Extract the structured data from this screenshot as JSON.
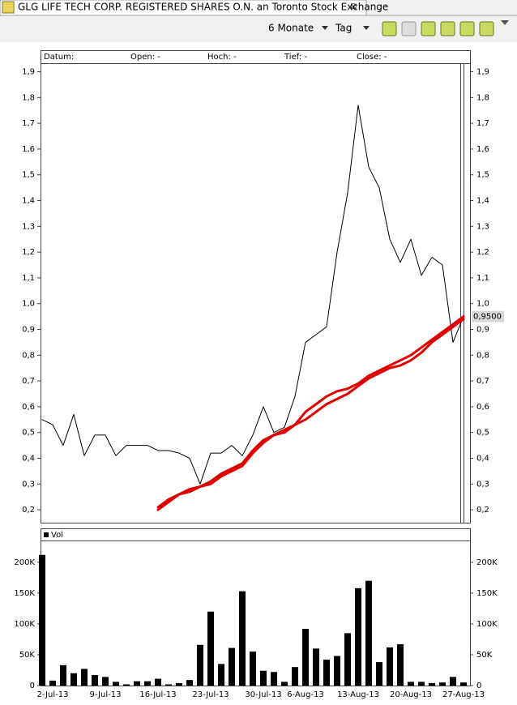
{
  "tab_title": "GLG LIFE TECH CORP. REGISTERED SHARES O.N. an Toronto Stock Exchange",
  "toolbar": {
    "period": "6 Monate",
    "interval": "Tag"
  },
  "chart_data": [
    {
      "type": "line",
      "header_fields": [
        "Datum:",
        "Open: -",
        "Hoch: -",
        "Tief: -",
        "Close: -"
      ],
      "ylim": [
        0.15,
        1.93
      ],
      "yticks": [
        {
          "value": 0.2,
          "label": "0,2"
        },
        {
          "value": 0.3,
          "label": "0,3"
        },
        {
          "value": 0.4,
          "label": "0,4"
        },
        {
          "value": 0.5,
          "label": "0,5"
        },
        {
          "value": 0.6,
          "label": "0,6"
        },
        {
          "value": 0.7,
          "label": "0,7"
        },
        {
          "value": 0.8,
          "label": "0,8"
        },
        {
          "value": 0.9,
          "label": "0,9"
        },
        {
          "value": 1.0,
          "label": "1,0"
        },
        {
          "value": 1.1,
          "label": "1,1"
        },
        {
          "value": 1.2,
          "label": "1,2"
        },
        {
          "value": 1.3,
          "label": "1,3"
        },
        {
          "value": 1.4,
          "label": "1,4"
        },
        {
          "value": 1.5,
          "label": "1,5"
        },
        {
          "value": 1.6,
          "label": "1,6"
        },
        {
          "value": 1.7,
          "label": "1,7"
        },
        {
          "value": 1.8,
          "label": "1,8"
        },
        {
          "value": 1.9,
          "label": "1,9"
        }
      ],
      "last_value": {
        "value": 0.95,
        "label": "0,9500"
      },
      "series": [
        {
          "color": "#000000",
          "width": 1,
          "values": [
            0.55,
            0.53,
            0.45,
            0.57,
            0.41,
            0.49,
            0.49,
            0.41,
            0.45,
            0.45,
            0.45,
            0.43,
            0.43,
            0.42,
            0.4,
            0.3,
            0.42,
            0.42,
            0.45,
            0.41,
            0.49,
            0.6,
            0.5,
            0.52,
            0.64,
            0.85,
            0.88,
            0.91,
            1.2,
            1.43,
            1.77,
            1.53,
            1.45,
            1.25,
            1.16,
            1.25,
            1.11,
            1.18,
            1.15,
            0.85,
            0.95
          ]
        },
        {
          "color": "#e00000",
          "width": 3,
          "values": [
            null,
            null,
            null,
            null,
            null,
            null,
            null,
            null,
            null,
            null,
            null,
            0.21,
            0.24,
            0.26,
            0.28,
            0.29,
            0.31,
            0.34,
            0.36,
            0.38,
            0.43,
            0.47,
            0.49,
            0.51,
            0.53,
            0.58,
            0.61,
            0.64,
            0.66,
            0.67,
            0.69,
            0.72,
            0.74,
            0.76,
            0.78,
            0.8,
            0.83,
            0.86,
            0.89,
            0.92,
            0.95
          ]
        },
        {
          "color": "#e00000",
          "width": 3,
          "values": [
            null,
            null,
            null,
            null,
            null,
            null,
            null,
            null,
            null,
            null,
            null,
            0.2,
            0.23,
            0.26,
            0.27,
            0.29,
            0.3,
            0.33,
            0.35,
            0.37,
            0.42,
            0.46,
            0.49,
            0.5,
            0.53,
            0.55,
            0.58,
            0.61,
            0.63,
            0.65,
            0.68,
            0.71,
            0.73,
            0.75,
            0.76,
            0.78,
            0.81,
            0.85,
            0.88,
            0.91,
            0.94
          ]
        }
      ]
    },
    {
      "type": "bar",
      "categories": [
        null,
        "2-Jul-13",
        null,
        null,
        null,
        null,
        "9-Jul-13",
        null,
        null,
        null,
        null,
        "16-Jul-13",
        null,
        null,
        null,
        null,
        "23-Jul-13",
        null,
        null,
        null,
        null,
        "30-Jul-13",
        null,
        null,
        null,
        "6-Aug-13",
        null,
        null,
        null,
        null,
        "13-Aug-13",
        null,
        null,
        null,
        null,
        "20-Aug-13",
        null,
        null,
        null,
        null,
        "27-Aug-13"
      ],
      "ylim": [
        0,
        234000
      ],
      "yticks": [
        0,
        {
          "value": 50000,
          "label": "50K"
        },
        {
          "value": 100000,
          "label": "100K"
        },
        {
          "value": 150000,
          "label": "150K"
        },
        {
          "value": 200000,
          "label": "200K"
        }
      ],
      "series": [
        {
          "name": "Vol",
          "color": "#000000",
          "values": [
            212000,
            8000,
            33000,
            20000,
            27000,
            17000,
            14000,
            6000,
            2000,
            7000,
            7000,
            11000,
            2000,
            4000,
            9000,
            66000,
            120000,
            35000,
            61000,
            153000,
            55000,
            24000,
            22000,
            6000,
            30000,
            92000,
            60000,
            42000,
            48000,
            85000,
            158000,
            170000,
            38000,
            62000,
            67000,
            6000,
            6000,
            4000,
            5000,
            14000,
            5000
          ]
        }
      ]
    }
  ]
}
